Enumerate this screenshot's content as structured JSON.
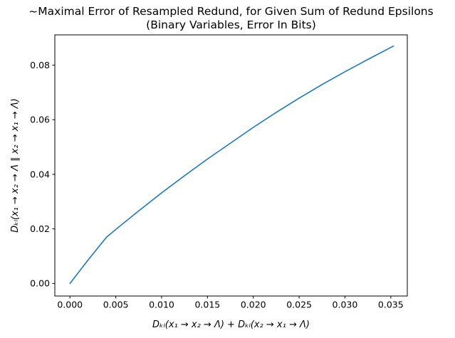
{
  "chart_data": {
    "type": "line",
    "title": "~Maximal Error of Resampled Redund, for Given Sum of Redund Epsilons",
    "subtitle": "(Binary Variables, Error In Bits)",
    "xlabel": "Dₖₗ(x₁ → x₂ → Λ) + Dₖₗ(x₂ → x₁ → Λ)",
    "ylabel": "Dₖₗ(x₁ → x₂ → Λ ∥ x₂ → x₁ → Λ)",
    "grid": false,
    "legend_position": "none",
    "background_color": "#ffffff",
    "line_color": "#1f77b4",
    "text_color": "#000000",
    "xlim": [
      -0.00165,
      0.0368
    ],
    "ylim": [
      -0.0046,
      0.0911
    ],
    "xticks": [
      0.0,
      0.005,
      0.01,
      0.015,
      0.02,
      0.025,
      0.03,
      0.035
    ],
    "xtick_labels": [
      "0.000",
      "0.005",
      "0.010",
      "0.015",
      "0.020",
      "0.025",
      "0.030",
      "0.035"
    ],
    "yticks": [
      0.0,
      0.02,
      0.04,
      0.06,
      0.08
    ],
    "ytick_labels": [
      "0.00",
      "0.02",
      "0.04",
      "0.06",
      "0.08"
    ],
    "series": [
      {
        "x": [
          0.0,
          0.002,
          0.004,
          0.005,
          0.0075,
          0.01,
          0.0125,
          0.015,
          0.0175,
          0.02,
          0.0225,
          0.025,
          0.0275,
          0.03,
          0.0325,
          0.0353
        ],
        "y": [
          0.0,
          0.0087,
          0.017,
          0.0198,
          0.0266,
          0.0332,
          0.0395,
          0.0456,
          0.0514,
          0.0572,
          0.0627,
          0.0679,
          0.0729,
          0.0776,
          0.0821,
          0.087
        ]
      }
    ]
  }
}
